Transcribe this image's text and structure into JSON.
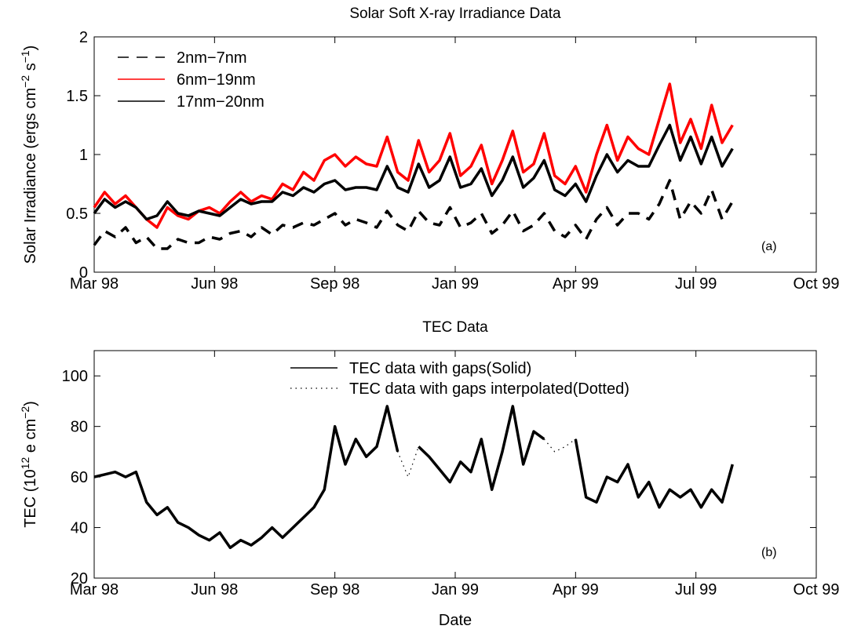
{
  "chart_data": [
    {
      "type": "line",
      "title": "Solar Soft X-ray Irradiance Data",
      "ylabel": [
        {
          "text": "Solar Irradiance (ergs cm"
        },
        {
          "sup": "−2"
        },
        {
          "text": " s"
        },
        {
          "sup": "−1"
        },
        {
          "text": ")"
        }
      ],
      "annotation": "(a)",
      "legend": "upper left",
      "x": [
        0,
        8,
        16,
        24,
        32,
        40,
        48,
        56,
        64,
        72,
        80,
        88,
        96,
        104,
        112,
        120,
        128,
        136,
        144,
        152,
        160,
        168,
        176,
        184,
        192,
        200,
        208,
        216,
        224,
        232,
        240,
        248,
        256,
        264,
        272,
        280,
        288,
        296,
        304,
        312,
        320,
        328,
        336,
        344,
        352,
        360,
        368,
        376,
        384,
        392,
        400,
        408,
        416,
        424,
        432,
        440,
        448,
        456,
        464,
        472,
        480,
        488
      ],
      "xlim": [
        0,
        552
      ],
      "xticks": [
        {
          "value": 0,
          "label": "Mar 98"
        },
        {
          "value": 92,
          "label": "Jun 98"
        },
        {
          "value": 184,
          "label": "Sep 98"
        },
        {
          "value": 276,
          "label": "Jan 99"
        },
        {
          "value": 368,
          "label": "Apr 99"
        },
        {
          "value": 460,
          "label": "Jul 99"
        },
        {
          "value": 552,
          "label": "Oct 99"
        }
      ],
      "ylim": [
        0,
        2
      ],
      "yticks": [
        0,
        0.5,
        1,
        1.5,
        2
      ],
      "series": [
        {
          "name": "2nm−7nm",
          "color": "#000000",
          "dash": "dashed",
          "values": [
            0.23,
            0.35,
            0.3,
            0.38,
            0.25,
            0.3,
            0.2,
            0.2,
            0.28,
            0.25,
            0.25,
            0.3,
            0.28,
            0.33,
            0.35,
            0.3,
            0.38,
            0.32,
            0.4,
            0.38,
            0.42,
            0.4,
            0.45,
            0.5,
            0.4,
            0.45,
            0.42,
            0.38,
            0.52,
            0.4,
            0.35,
            0.52,
            0.42,
            0.4,
            0.55,
            0.38,
            0.42,
            0.5,
            0.33,
            0.4,
            0.52,
            0.35,
            0.4,
            0.5,
            0.35,
            0.3,
            0.4,
            0.28,
            0.45,
            0.55,
            0.4,
            0.5,
            0.5,
            0.45,
            0.58,
            0.78,
            0.45,
            0.6,
            0.5,
            0.7,
            0.45,
            0.6
          ]
        },
        {
          "name": "6nm−19nm",
          "color": "#ff0000",
          "dash": "solid",
          "values": [
            0.55,
            0.68,
            0.58,
            0.65,
            0.55,
            0.45,
            0.38,
            0.55,
            0.48,
            0.45,
            0.52,
            0.55,
            0.5,
            0.6,
            0.68,
            0.6,
            0.65,
            0.62,
            0.75,
            0.7,
            0.85,
            0.78,
            0.95,
            1.0,
            0.9,
            0.98,
            0.92,
            0.9,
            1.15,
            0.85,
            0.78,
            1.12,
            0.85,
            0.95,
            1.18,
            0.82,
            0.9,
            1.08,
            0.75,
            0.95,
            1.2,
            0.85,
            0.92,
            1.18,
            0.82,
            0.75,
            0.9,
            0.68,
            1.0,
            1.25,
            0.95,
            1.15,
            1.05,
            1.0,
            1.3,
            1.6,
            1.1,
            1.3,
            1.05,
            1.42,
            1.1,
            1.25
          ]
        },
        {
          "name": "17nm−20nm",
          "color": "#000000",
          "dash": "solid",
          "values": [
            0.5,
            0.62,
            0.55,
            0.6,
            0.55,
            0.45,
            0.48,
            0.6,
            0.5,
            0.48,
            0.52,
            0.5,
            0.48,
            0.55,
            0.62,
            0.58,
            0.6,
            0.6,
            0.68,
            0.65,
            0.72,
            0.68,
            0.75,
            0.78,
            0.7,
            0.72,
            0.72,
            0.7,
            0.9,
            0.72,
            0.68,
            0.92,
            0.72,
            0.78,
            0.98,
            0.72,
            0.75,
            0.88,
            0.65,
            0.78,
            0.98,
            0.72,
            0.8,
            0.95,
            0.7,
            0.65,
            0.75,
            0.6,
            0.82,
            1.0,
            0.85,
            0.95,
            0.9,
            0.9,
            1.08,
            1.25,
            0.95,
            1.15,
            0.92,
            1.15,
            0.9,
            1.05
          ]
        }
      ]
    },
    {
      "type": "line",
      "title": "TEC Data",
      "xlabel": "Date",
      "ylabel": [
        {
          "text": "TEC (10"
        },
        {
          "sup": "12"
        },
        {
          "text": " e cm"
        },
        {
          "sup": "−2"
        },
        {
          "text": ")"
        }
      ],
      "annotation": "(b)",
      "legend": "upper center",
      "x": [
        0,
        8,
        16,
        24,
        32,
        40,
        48,
        56,
        64,
        72,
        80,
        88,
        96,
        104,
        112,
        120,
        128,
        136,
        144,
        152,
        160,
        168,
        176,
        184,
        192,
        200,
        208,
        216,
        224,
        232,
        240,
        248,
        256,
        264,
        272,
        280,
        288,
        296,
        304,
        312,
        320,
        328,
        336,
        344,
        352,
        360,
        368,
        376,
        384,
        392,
        400,
        408,
        416,
        424,
        432,
        440,
        448,
        456,
        464,
        472,
        480,
        488
      ],
      "xlim": [
        0,
        552
      ],
      "xticks": [
        {
          "value": 0,
          "label": "Mar 98"
        },
        {
          "value": 92,
          "label": "Jun 98"
        },
        {
          "value": 184,
          "label": "Sep 98"
        },
        {
          "value": 276,
          "label": "Jan 99"
        },
        {
          "value": 368,
          "label": "Apr 99"
        },
        {
          "value": 460,
          "label": "Jul 99"
        },
        {
          "value": 552,
          "label": "Oct 99"
        }
      ],
      "ylim": [
        20,
        110
      ],
      "yticks": [
        20,
        40,
        60,
        80,
        100
      ],
      "series": [
        {
          "name": "TEC data with gaps(Solid)",
          "color": "#000000",
          "dash": "solid",
          "values": [
            60,
            61,
            62,
            60,
            62,
            50,
            45,
            48,
            42,
            40,
            37,
            35,
            38,
            32,
            35,
            33,
            36,
            40,
            36,
            40,
            44,
            48,
            55,
            80,
            65,
            75,
            68,
            72,
            88,
            70,
            null,
            72,
            68,
            63,
            58,
            66,
            62,
            75,
            55,
            70,
            88,
            65,
            78,
            75,
            null,
            null,
            75,
            52,
            50,
            60,
            58,
            65,
            52,
            58,
            48,
            55,
            52,
            55,
            48,
            55,
            50,
            65
          ]
        },
        {
          "name": "TEC data with gaps interpolated(Dotted)",
          "color": "#000000",
          "dash": "dotted",
          "values": [
            60,
            61,
            62,
            60,
            62,
            50,
            45,
            48,
            42,
            40,
            37,
            35,
            38,
            32,
            35,
            33,
            36,
            40,
            36,
            40,
            44,
            48,
            55,
            80,
            65,
            75,
            68,
            72,
            88,
            70,
            60,
            72,
            68,
            63,
            58,
            66,
            62,
            75,
            55,
            70,
            88,
            65,
            78,
            75,
            70,
            72,
            75,
            52,
            50,
            60,
            58,
            65,
            52,
            58,
            48,
            55,
            52,
            55,
            48,
            55,
            50,
            65
          ]
        }
      ]
    }
  ]
}
